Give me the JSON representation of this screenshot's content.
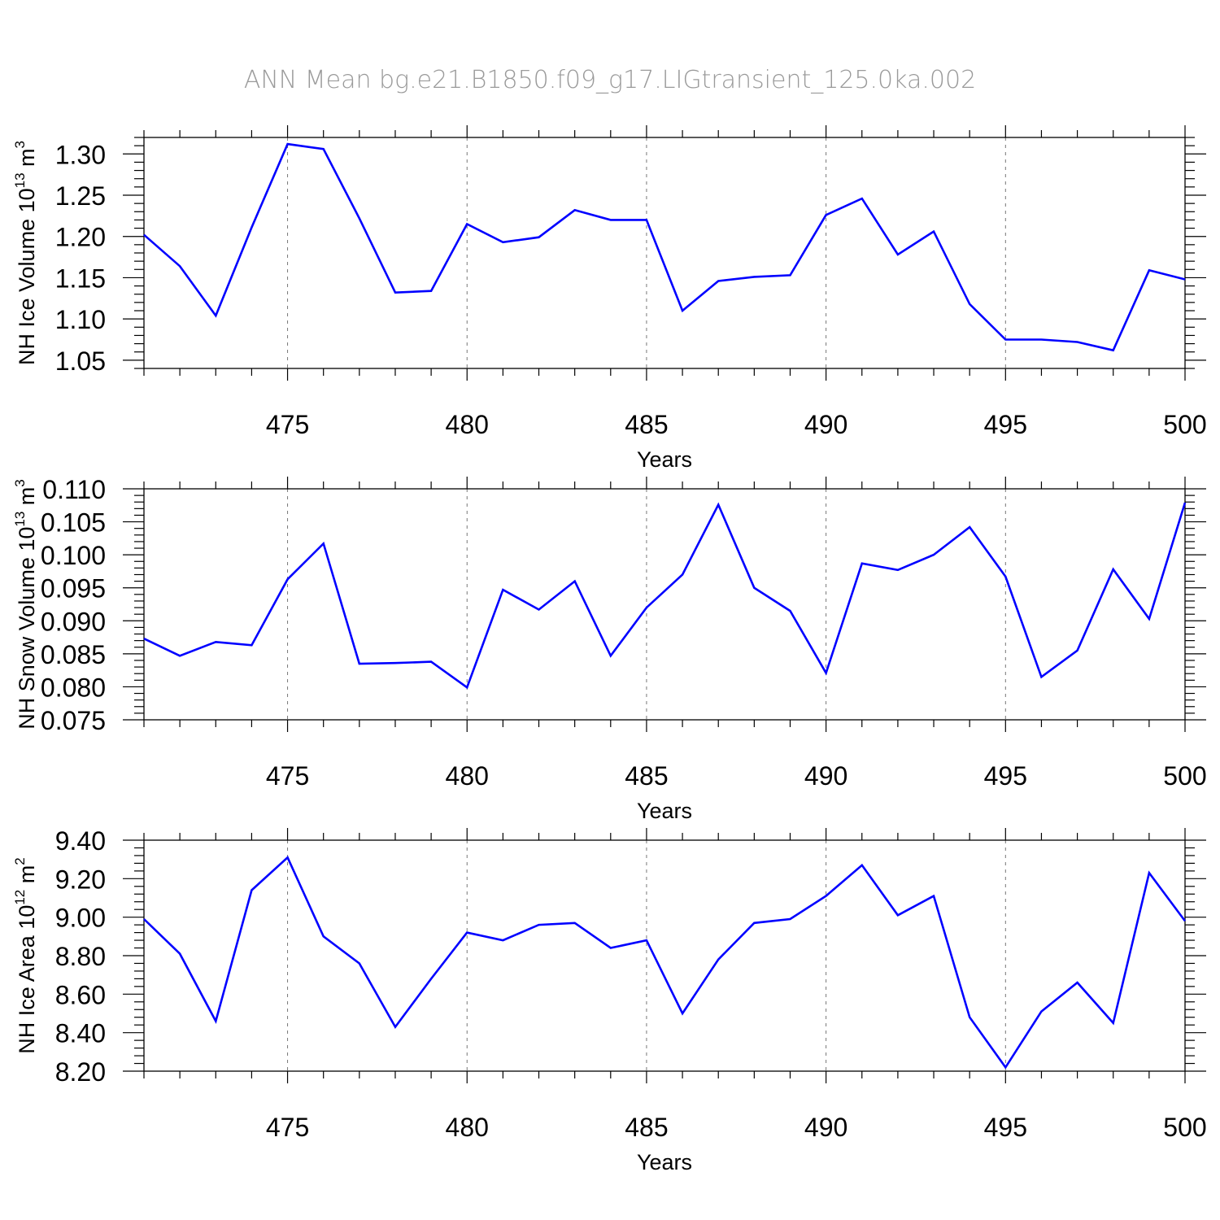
{
  "title": "ANN Mean  bg.e21.B1850.f09_g17.LIGtransient_125.0ka.002",
  "chart_data": [
    {
      "type": "line",
      "xlabel": "Years",
      "ylabel": {
        "base": "NH Ice Volume 10",
        "exponent": "13",
        "unit": " m",
        "unit_exponent": "3"
      },
      "xlim": [
        471,
        500
      ],
      "ylim": [
        1.04,
        1.32
      ],
      "xticks": [
        475,
        480,
        485,
        490,
        495,
        500
      ],
      "xtick_labels": [
        "475",
        "480",
        "485",
        "490",
        "495",
        "500"
      ],
      "yticks": [
        1.05,
        1.1,
        1.15,
        1.2,
        1.25,
        1.3
      ],
      "ytick_labels": [
        "1.05",
        "1.10",
        "1.15",
        "1.20",
        "1.25",
        "1.30"
      ],
      "x": [
        471,
        472,
        473,
        474,
        475,
        476,
        477,
        478,
        479,
        480,
        481,
        482,
        483,
        484,
        485,
        486,
        487,
        488,
        489,
        490,
        491,
        492,
        493,
        494,
        495,
        496,
        497,
        498,
        499,
        500
      ],
      "y": [
        1.202,
        1.164,
        1.104,
        1.211,
        1.312,
        1.306,
        1.222,
        1.132,
        1.134,
        1.215,
        1.193,
        1.199,
        1.232,
        1.22,
        1.22,
        1.11,
        1.146,
        1.151,
        1.153,
        1.226,
        1.246,
        1.178,
        1.206,
        1.118,
        1.075,
        1.075,
        1.072,
        1.062,
        1.159,
        1.148
      ],
      "color": "#0000ff"
    },
    {
      "type": "line",
      "xlabel": "Years",
      "ylabel": {
        "base": "NH Snow Volume 10",
        "exponent": "13",
        "unit": " m",
        "unit_exponent": "3"
      },
      "xlim": [
        471,
        500
      ],
      "ylim": [
        0.075,
        0.11
      ],
      "xticks": [
        475,
        480,
        485,
        490,
        495,
        500
      ],
      "xtick_labels": [
        "475",
        "480",
        "485",
        "490",
        "495",
        "500"
      ],
      "yticks": [
        0.075,
        0.08,
        0.085,
        0.09,
        0.095,
        0.1,
        0.105,
        0.11
      ],
      "ytick_labels": [
        "0.075",
        "0.080",
        "0.085",
        "0.090",
        "0.095",
        "0.100",
        "0.105",
        "0.110"
      ],
      "x": [
        471,
        472,
        473,
        474,
        475,
        476,
        477,
        478,
        479,
        480,
        481,
        482,
        483,
        484,
        485,
        486,
        487,
        488,
        489,
        490,
        491,
        492,
        493,
        494,
        495,
        496,
        497,
        498,
        499,
        500
      ],
      "y": [
        0.0873,
        0.0847,
        0.0868,
        0.0863,
        0.0963,
        0.1017,
        0.0835,
        0.0836,
        0.0838,
        0.0799,
        0.0947,
        0.0917,
        0.096,
        0.0847,
        0.092,
        0.097,
        0.1076,
        0.095,
        0.0915,
        0.0821,
        0.0987,
        0.0977,
        0.1,
        0.1042,
        0.0967,
        0.0815,
        0.0855,
        0.0978,
        0.0903,
        0.1079
      ],
      "color": "#0000ff"
    },
    {
      "type": "line",
      "xlabel": "Years",
      "ylabel": {
        "base": "NH Ice Area 10",
        "exponent": "12",
        "unit": " m",
        "unit_exponent": "2"
      },
      "xlim": [
        471,
        500
      ],
      "ylim": [
        8.2,
        9.4
      ],
      "xticks": [
        475,
        480,
        485,
        490,
        495,
        500
      ],
      "xtick_labels": [
        "475",
        "480",
        "485",
        "490",
        "495",
        "500"
      ],
      "yticks": [
        8.2,
        8.4,
        8.6,
        8.8,
        9.0,
        9.2,
        9.4
      ],
      "ytick_labels": [
        "8.20",
        "8.40",
        "8.60",
        "8.80",
        "9.00",
        "9.20",
        "9.40"
      ],
      "x": [
        471,
        472,
        473,
        474,
        475,
        476,
        477,
        478,
        479,
        480,
        481,
        482,
        483,
        484,
        485,
        486,
        487,
        488,
        489,
        490,
        491,
        492,
        493,
        494,
        495,
        496,
        497,
        498,
        499,
        500
      ],
      "y": [
        8.99,
        8.81,
        8.46,
        9.14,
        9.31,
        8.9,
        8.76,
        8.43,
        8.68,
        8.92,
        8.88,
        8.96,
        8.97,
        8.84,
        8.88,
        8.5,
        8.78,
        8.97,
        8.99,
        9.11,
        9.27,
        9.01,
        9.11,
        8.48,
        8.22,
        8.51,
        8.66,
        8.45,
        9.23,
        8.98
      ],
      "color": "#0000ff"
    }
  ]
}
